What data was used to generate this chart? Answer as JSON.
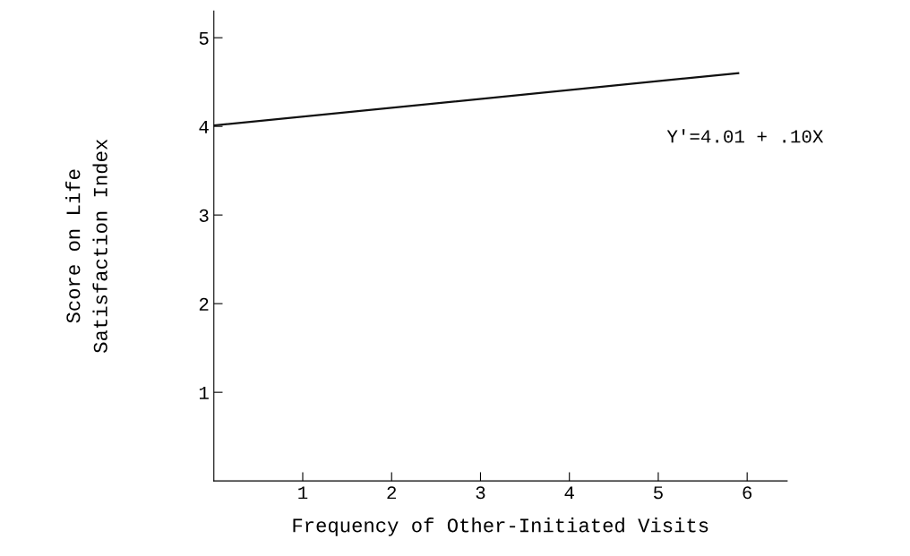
{
  "chart_data": {
    "type": "line",
    "xlabel": "Frequency of Other-Initiated Visits",
    "ylabel": "Score on Life\nSatisfaction Index",
    "annotations": [
      "Y'=4.01 + .10X"
    ],
    "series": [
      {
        "color": "#111111",
        "x": [
          0,
          5.9
        ],
        "values": [
          4.01,
          4.6
        ]
      }
    ],
    "xlim": [
      0,
      6.45
    ],
    "ylim": [
      0,
      5.3
    ],
    "xticks": [
      1,
      2,
      3,
      4,
      5,
      6
    ],
    "yticks": [
      1,
      2,
      3,
      4,
      5
    ],
    "grid": false,
    "marker": "none",
    "line_style": "solid"
  }
}
